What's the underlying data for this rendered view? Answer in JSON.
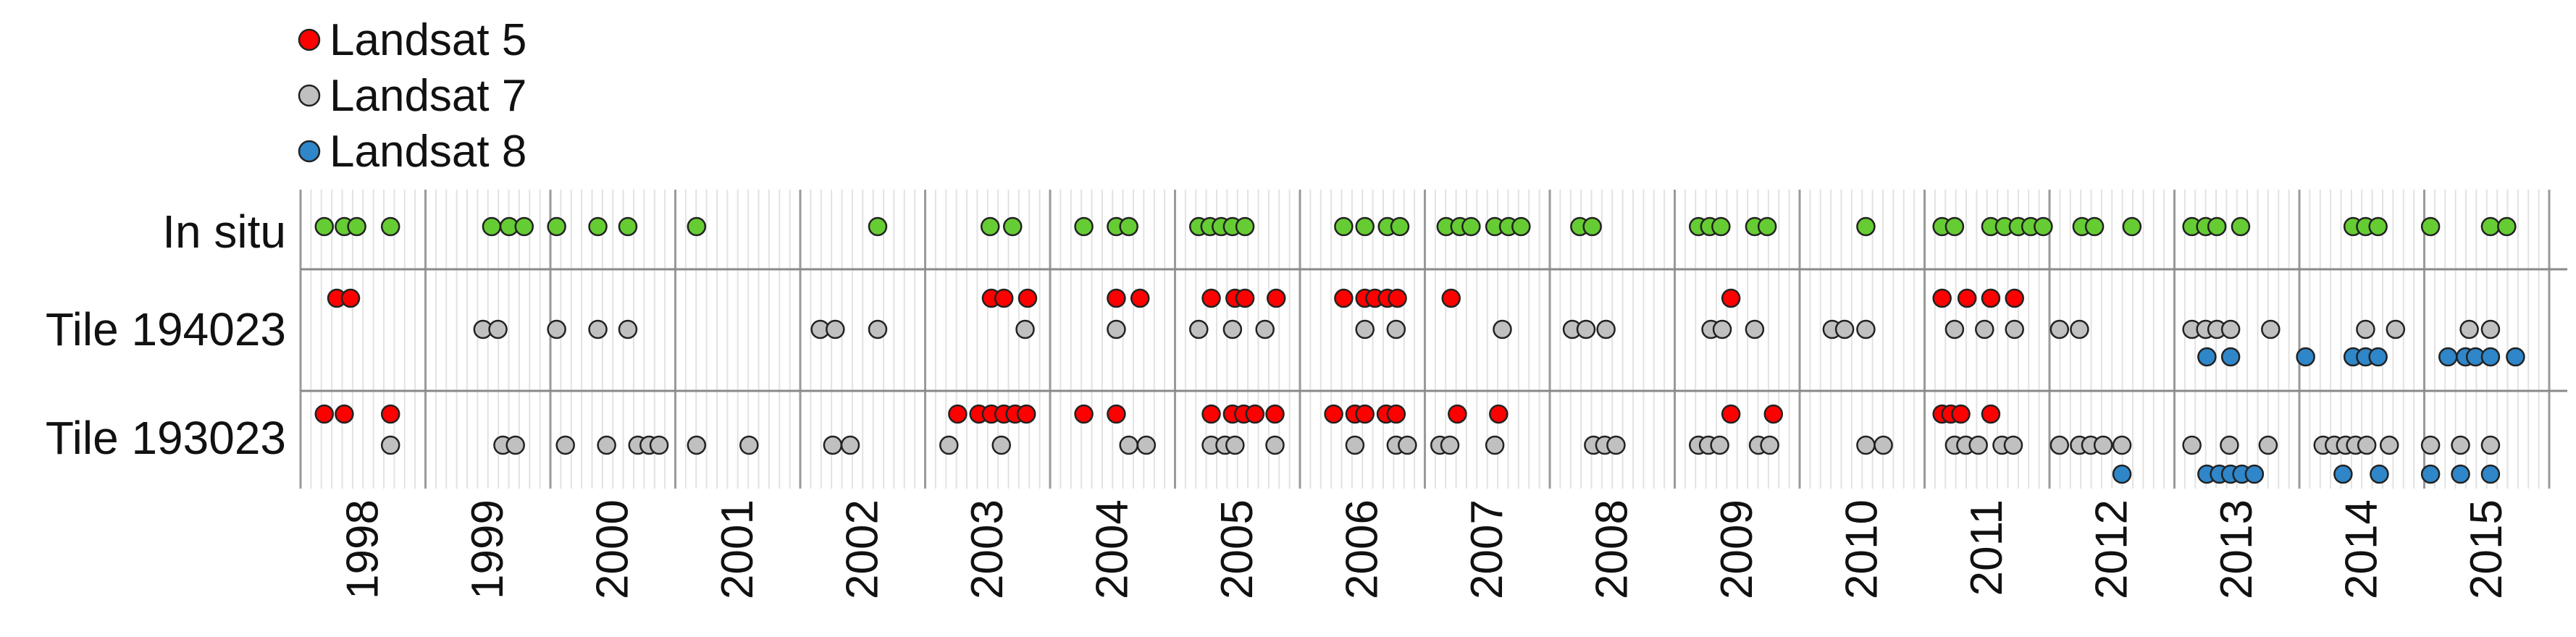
{
  "chart_data": {
    "type": "scatter",
    "title": "",
    "xlabel": "",
    "ylabel": "",
    "x_range": [
      1998,
      2016
    ],
    "legend": {
      "placement": "top-left",
      "entries": [
        {
          "name": "Landsat 5",
          "color": "#ff0000"
        },
        {
          "name": "Landsat 7",
          "color": "#c0c0c0"
        },
        {
          "name": "Landsat 8",
          "color": "#2f86c8"
        }
      ]
    },
    "insitu_color": "#66cc33",
    "grid": "vertical month lines within each year, darker year boundaries, horizontal row separators",
    "years": [
      "1998",
      "1999",
      "2000",
      "2001",
      "2002",
      "2003",
      "2004",
      "2005",
      "2006",
      "2007",
      "2008",
      "2009",
      "2010",
      "2011",
      "2012",
      "2013",
      "2014",
      "2015"
    ],
    "rows": [
      {
        "label": "In situ",
        "series": [
          {
            "name": "In situ",
            "x": [
              1998.19,
              1998.35,
              1998.45,
              1998.72,
              1999.53,
              1999.67,
              1999.79,
              2000.05,
              2000.38,
              2000.62,
              2001.17,
              2002.62,
              2003.52,
              2003.7,
              2004.27,
              2004.53,
              2004.63,
              2005.19,
              2005.28,
              2005.37,
              2005.46,
              2005.56,
              2006.35,
              2006.52,
              2006.7,
              2006.8,
              2007.17,
              2007.28,
              2007.37,
              2007.56,
              2007.67,
              2007.77,
              2008.24,
              2008.34,
              2009.19,
              2009.28,
              2009.37,
              2009.64,
              2009.74,
              2010.53,
              2011.14,
              2011.24,
              2011.53,
              2011.64,
              2011.75,
              2011.85,
              2011.95,
              2012.26,
              2012.36,
              2012.66,
              2013.14,
              2013.25,
              2013.34,
              2013.53,
              2014.43,
              2014.53,
              2014.63,
              2015.05,
              2015.53,
              2015.66
            ]
          }
        ]
      },
      {
        "label": "Tile 194023",
        "series": [
          {
            "name": "Landsat 5",
            "x": [
              1998.29,
              1998.4,
              2003.53,
              2003.63,
              2003.82,
              2004.53,
              2004.72,
              2005.29,
              2005.48,
              2005.56,
              2005.81,
              2006.35,
              2006.52,
              2006.6,
              2006.7,
              2006.78,
              2007.21,
              2009.45,
              2011.14,
              2011.34,
              2011.53,
              2011.72
            ]
          },
          {
            "name": "Landsat 7",
            "x": [
              1999.46,
              1999.58,
              2000.05,
              2000.38,
              2000.62,
              2002.16,
              2002.28,
              2002.62,
              2003.8,
              2004.53,
              2005.19,
              2005.46,
              2005.72,
              2006.52,
              2006.77,
              2007.62,
              2008.18,
              2008.29,
              2008.45,
              2009.29,
              2009.38,
              2009.64,
              2010.26,
              2010.36,
              2010.53,
              2011.24,
              2011.48,
              2011.72,
              2012.08,
              2012.24,
              2013.14,
              2013.25,
              2013.34,
              2013.45,
              2013.77,
              2014.53,
              2014.77,
              2015.36,
              2015.53
            ]
          },
          {
            "name": "Landsat 8",
            "x": [
              2013.26,
              2013.45,
              2014.05,
              2014.43,
              2014.53,
              2014.63,
              2015.19,
              2015.33,
              2015.41,
              2015.53,
              2015.73
            ]
          }
        ]
      },
      {
        "label": "Tile 193023",
        "series": [
          {
            "name": "Landsat 5",
            "x": [
              1998.19,
              1998.35,
              1998.72,
              2003.26,
              2003.43,
              2003.53,
              2003.63,
              2003.72,
              2003.81,
              2004.27,
              2004.53,
              2005.29,
              2005.46,
              2005.55,
              2005.64,
              2005.8,
              2006.27,
              2006.44,
              2006.52,
              2006.69,
              2006.77,
              2007.26,
              2007.59,
              2009.45,
              2009.79,
              2011.14,
              2011.21,
              2011.29,
              2011.53
            ]
          },
          {
            "name": "Landsat 7",
            "x": [
              1998.72,
              1999.62,
              1999.72,
              2000.12,
              2000.45,
              2000.7,
              2000.79,
              2000.87,
              2001.17,
              2001.59,
              2002.26,
              2002.4,
              2003.19,
              2003.61,
              2004.63,
              2004.77,
              2005.29,
              2005.4,
              2005.48,
              2005.8,
              2006.44,
              2006.77,
              2006.86,
              2007.12,
              2007.2,
              2007.56,
              2008.35,
              2008.44,
              2008.53,
              2009.19,
              2009.27,
              2009.36,
              2009.67,
              2009.76,
              2010.53,
              2010.67,
              2011.24,
              2011.33,
              2011.43,
              2011.62,
              2011.71,
              2012.08,
              2012.24,
              2012.33,
              2012.43,
              2012.58,
              2013.14,
              2013.44,
              2013.75,
              2014.19,
              2014.28,
              2014.37,
              2014.45,
              2014.54,
              2014.72,
              2015.05,
              2015.29,
              2015.53
            ]
          },
          {
            "name": "Landsat 8",
            "x": [
              2012.58,
              2013.26,
              2013.36,
              2013.45,
              2013.54,
              2013.64,
              2014.35,
              2014.64,
              2015.05,
              2015.29,
              2015.53
            ]
          }
        ]
      }
    ]
  }
}
